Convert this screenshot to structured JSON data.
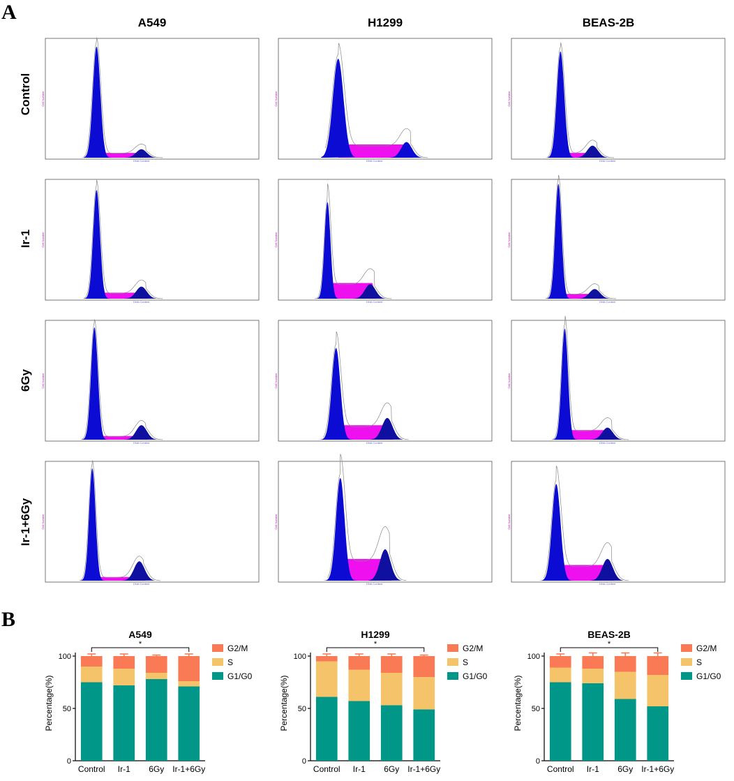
{
  "panel_labels": {
    "a": "A",
    "b": "B"
  },
  "histograms": {
    "columns": [
      "A549",
      "H1299",
      "BEAS-2B"
    ],
    "rows": [
      "Control",
      "Ir-1",
      "6Gy",
      "Ir-1+6Gy"
    ],
    "x_axis_label": "DNA Content",
    "y_axis_label": "Cell Number",
    "colors": {
      "g1_g2_peak": "#0b0bd4",
      "s_phase": "#ee10ee",
      "g2_dark": "#1010a0",
      "outline": "#8a8a8a"
    }
  },
  "chart_data": [
    {
      "type": "bar",
      "stacked": true,
      "title": "A549",
      "categories": [
        "Control",
        "Ir-1",
        "6Gy",
        "Ir-1+6Gy"
      ],
      "ylabel": "Percentage(%)",
      "ylim": [
        0,
        110
      ],
      "yticks": [
        "0",
        "50",
        "100"
      ],
      "legend": [
        "G2/M",
        "S",
        "G1/G0"
      ],
      "significance": "*",
      "series": [
        {
          "name": "G1/G0",
          "color": "#009688",
          "values": [
            75,
            72,
            78,
            71
          ],
          "errors": [
            4,
            1,
            2,
            2
          ]
        },
        {
          "name": "S",
          "color": "#f5c46a",
          "values": [
            15,
            16,
            6,
            5
          ],
          "errors": [
            2,
            2,
            1,
            1
          ]
        },
        {
          "name": "G2/M",
          "color": "#fa7a55",
          "values": [
            10,
            12,
            16,
            24
          ],
          "errors": [
            2,
            2,
            1,
            2
          ]
        }
      ]
    },
    {
      "type": "bar",
      "stacked": true,
      "title": "H1299",
      "categories": [
        "Control",
        "Ir-1",
        "6Gy",
        "Ir-1+6Gy"
      ],
      "ylabel": "Percentage(%)",
      "ylim": [
        0,
        110
      ],
      "yticks": [
        "0",
        "50",
        "100"
      ],
      "legend": [
        "G2/M",
        "S",
        "G1/G0"
      ],
      "significance": "*",
      "series": [
        {
          "name": "G1/G0",
          "color": "#009688",
          "values": [
            61,
            57,
            53,
            49
          ],
          "errors": [
            3,
            3,
            2,
            2
          ]
        },
        {
          "name": "S",
          "color": "#f5c46a",
          "values": [
            34,
            30,
            31,
            31
          ],
          "errors": [
            2,
            2,
            2,
            2
          ]
        },
        {
          "name": "G2/M",
          "color": "#fa7a55",
          "values": [
            5,
            13,
            16,
            20
          ],
          "errors": [
            2,
            2,
            2,
            1
          ]
        }
      ]
    },
    {
      "type": "bar",
      "stacked": true,
      "title": "BEAS-2B",
      "categories": [
        "Control",
        "Ir-1",
        "6Gy",
        "Ir-1+6Gy"
      ],
      "ylabel": "Percentage(%)",
      "ylim": [
        0,
        110
      ],
      "yticks": [
        "0",
        "50",
        "100"
      ],
      "legend": [
        "G2/M",
        "S",
        "G1/G0"
      ],
      "significance": "*",
      "series": [
        {
          "name": "G1/G0",
          "color": "#009688",
          "values": [
            75,
            74,
            59,
            52
          ],
          "errors": [
            2,
            2,
            2,
            3
          ]
        },
        {
          "name": "S",
          "color": "#f5c46a",
          "values": [
            14,
            14,
            26,
            30
          ],
          "errors": [
            2,
            2,
            2,
            2
          ]
        },
        {
          "name": "G2/M",
          "color": "#fa7a55",
          "values": [
            11,
            12,
            15,
            18
          ],
          "errors": [
            2,
            3,
            3,
            3
          ]
        }
      ]
    }
  ]
}
